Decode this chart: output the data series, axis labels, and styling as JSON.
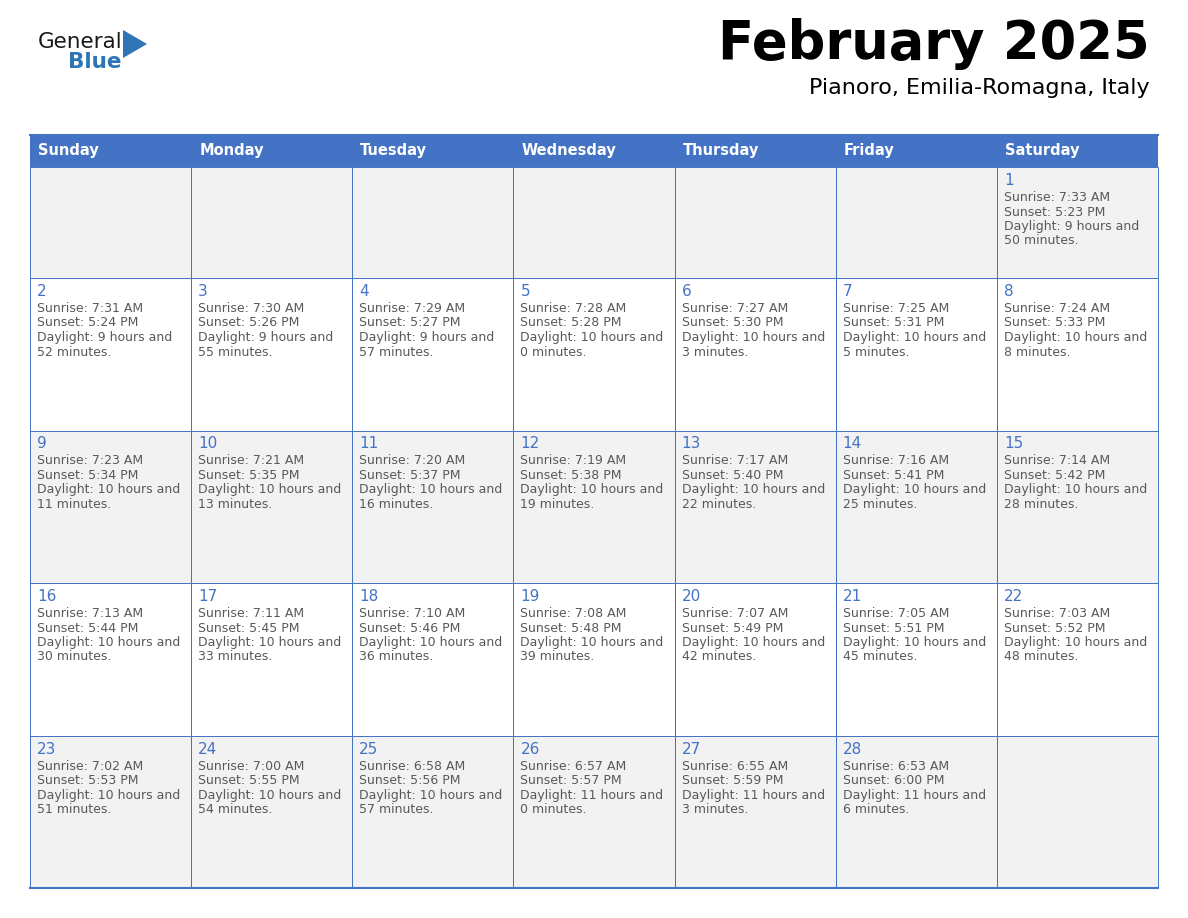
{
  "title": "February 2025",
  "subtitle": "Pianoro, Emilia-Romagna, Italy",
  "days_of_week": [
    "Sunday",
    "Monday",
    "Tuesday",
    "Wednesday",
    "Thursday",
    "Friday",
    "Saturday"
  ],
  "header_bg": "#4472C4",
  "header_text": "#FFFFFF",
  "cell_bg_even": "#F2F2F2",
  "cell_bg_odd": "#FFFFFF",
  "cell_border": "#4472C4",
  "day_number_color": "#4472C4",
  "info_text_color": "#595959",
  "title_color": "#000000",
  "subtitle_color": "#000000",
  "logo_general_color": "#1a1a1a",
  "logo_blue_color": "#2e75b6",
  "calendar": [
    [
      null,
      null,
      null,
      null,
      null,
      null,
      {
        "day": 1,
        "sunrise": "7:33 AM",
        "sunset": "5:23 PM",
        "daylight": "9 hours and 50 minutes"
      }
    ],
    [
      {
        "day": 2,
        "sunrise": "7:31 AM",
        "sunset": "5:24 PM",
        "daylight": "9 hours and 52 minutes"
      },
      {
        "day": 3,
        "sunrise": "7:30 AM",
        "sunset": "5:26 PM",
        "daylight": "9 hours and 55 minutes"
      },
      {
        "day": 4,
        "sunrise": "7:29 AM",
        "sunset": "5:27 PM",
        "daylight": "9 hours and 57 minutes"
      },
      {
        "day": 5,
        "sunrise": "7:28 AM",
        "sunset": "5:28 PM",
        "daylight": "10 hours and 0 minutes"
      },
      {
        "day": 6,
        "sunrise": "7:27 AM",
        "sunset": "5:30 PM",
        "daylight": "10 hours and 3 minutes"
      },
      {
        "day": 7,
        "sunrise": "7:25 AM",
        "sunset": "5:31 PM",
        "daylight": "10 hours and 5 minutes"
      },
      {
        "day": 8,
        "sunrise": "7:24 AM",
        "sunset": "5:33 PM",
        "daylight": "10 hours and 8 minutes"
      }
    ],
    [
      {
        "day": 9,
        "sunrise": "7:23 AM",
        "sunset": "5:34 PM",
        "daylight": "10 hours and 11 minutes"
      },
      {
        "day": 10,
        "sunrise": "7:21 AM",
        "sunset": "5:35 PM",
        "daylight": "10 hours and 13 minutes"
      },
      {
        "day": 11,
        "sunrise": "7:20 AM",
        "sunset": "5:37 PM",
        "daylight": "10 hours and 16 minutes"
      },
      {
        "day": 12,
        "sunrise": "7:19 AM",
        "sunset": "5:38 PM",
        "daylight": "10 hours and 19 minutes"
      },
      {
        "day": 13,
        "sunrise": "7:17 AM",
        "sunset": "5:40 PM",
        "daylight": "10 hours and 22 minutes"
      },
      {
        "day": 14,
        "sunrise": "7:16 AM",
        "sunset": "5:41 PM",
        "daylight": "10 hours and 25 minutes"
      },
      {
        "day": 15,
        "sunrise": "7:14 AM",
        "sunset": "5:42 PM",
        "daylight": "10 hours and 28 minutes"
      }
    ],
    [
      {
        "day": 16,
        "sunrise": "7:13 AM",
        "sunset": "5:44 PM",
        "daylight": "10 hours and 30 minutes"
      },
      {
        "day": 17,
        "sunrise": "7:11 AM",
        "sunset": "5:45 PM",
        "daylight": "10 hours and 33 minutes"
      },
      {
        "day": 18,
        "sunrise": "7:10 AM",
        "sunset": "5:46 PM",
        "daylight": "10 hours and 36 minutes"
      },
      {
        "day": 19,
        "sunrise": "7:08 AM",
        "sunset": "5:48 PM",
        "daylight": "10 hours and 39 minutes"
      },
      {
        "day": 20,
        "sunrise": "7:07 AM",
        "sunset": "5:49 PM",
        "daylight": "10 hours and 42 minutes"
      },
      {
        "day": 21,
        "sunrise": "7:05 AM",
        "sunset": "5:51 PM",
        "daylight": "10 hours and 45 minutes"
      },
      {
        "day": 22,
        "sunrise": "7:03 AM",
        "sunset": "5:52 PM",
        "daylight": "10 hours and 48 minutes"
      }
    ],
    [
      {
        "day": 23,
        "sunrise": "7:02 AM",
        "sunset": "5:53 PM",
        "daylight": "10 hours and 51 minutes"
      },
      {
        "day": 24,
        "sunrise": "7:00 AM",
        "sunset": "5:55 PM",
        "daylight": "10 hours and 54 minutes"
      },
      {
        "day": 25,
        "sunrise": "6:58 AM",
        "sunset": "5:56 PM",
        "daylight": "10 hours and 57 minutes"
      },
      {
        "day": 26,
        "sunrise": "6:57 AM",
        "sunset": "5:57 PM",
        "daylight": "11 hours and 0 minutes"
      },
      {
        "day": 27,
        "sunrise": "6:55 AM",
        "sunset": "5:59 PM",
        "daylight": "11 hours and 3 minutes"
      },
      {
        "day": 28,
        "sunrise": "6:53 AM",
        "sunset": "6:00 PM",
        "daylight": "11 hours and 6 minutes"
      },
      null
    ]
  ],
  "fig_w": 11.88,
  "fig_h": 9.18,
  "dpi": 100
}
